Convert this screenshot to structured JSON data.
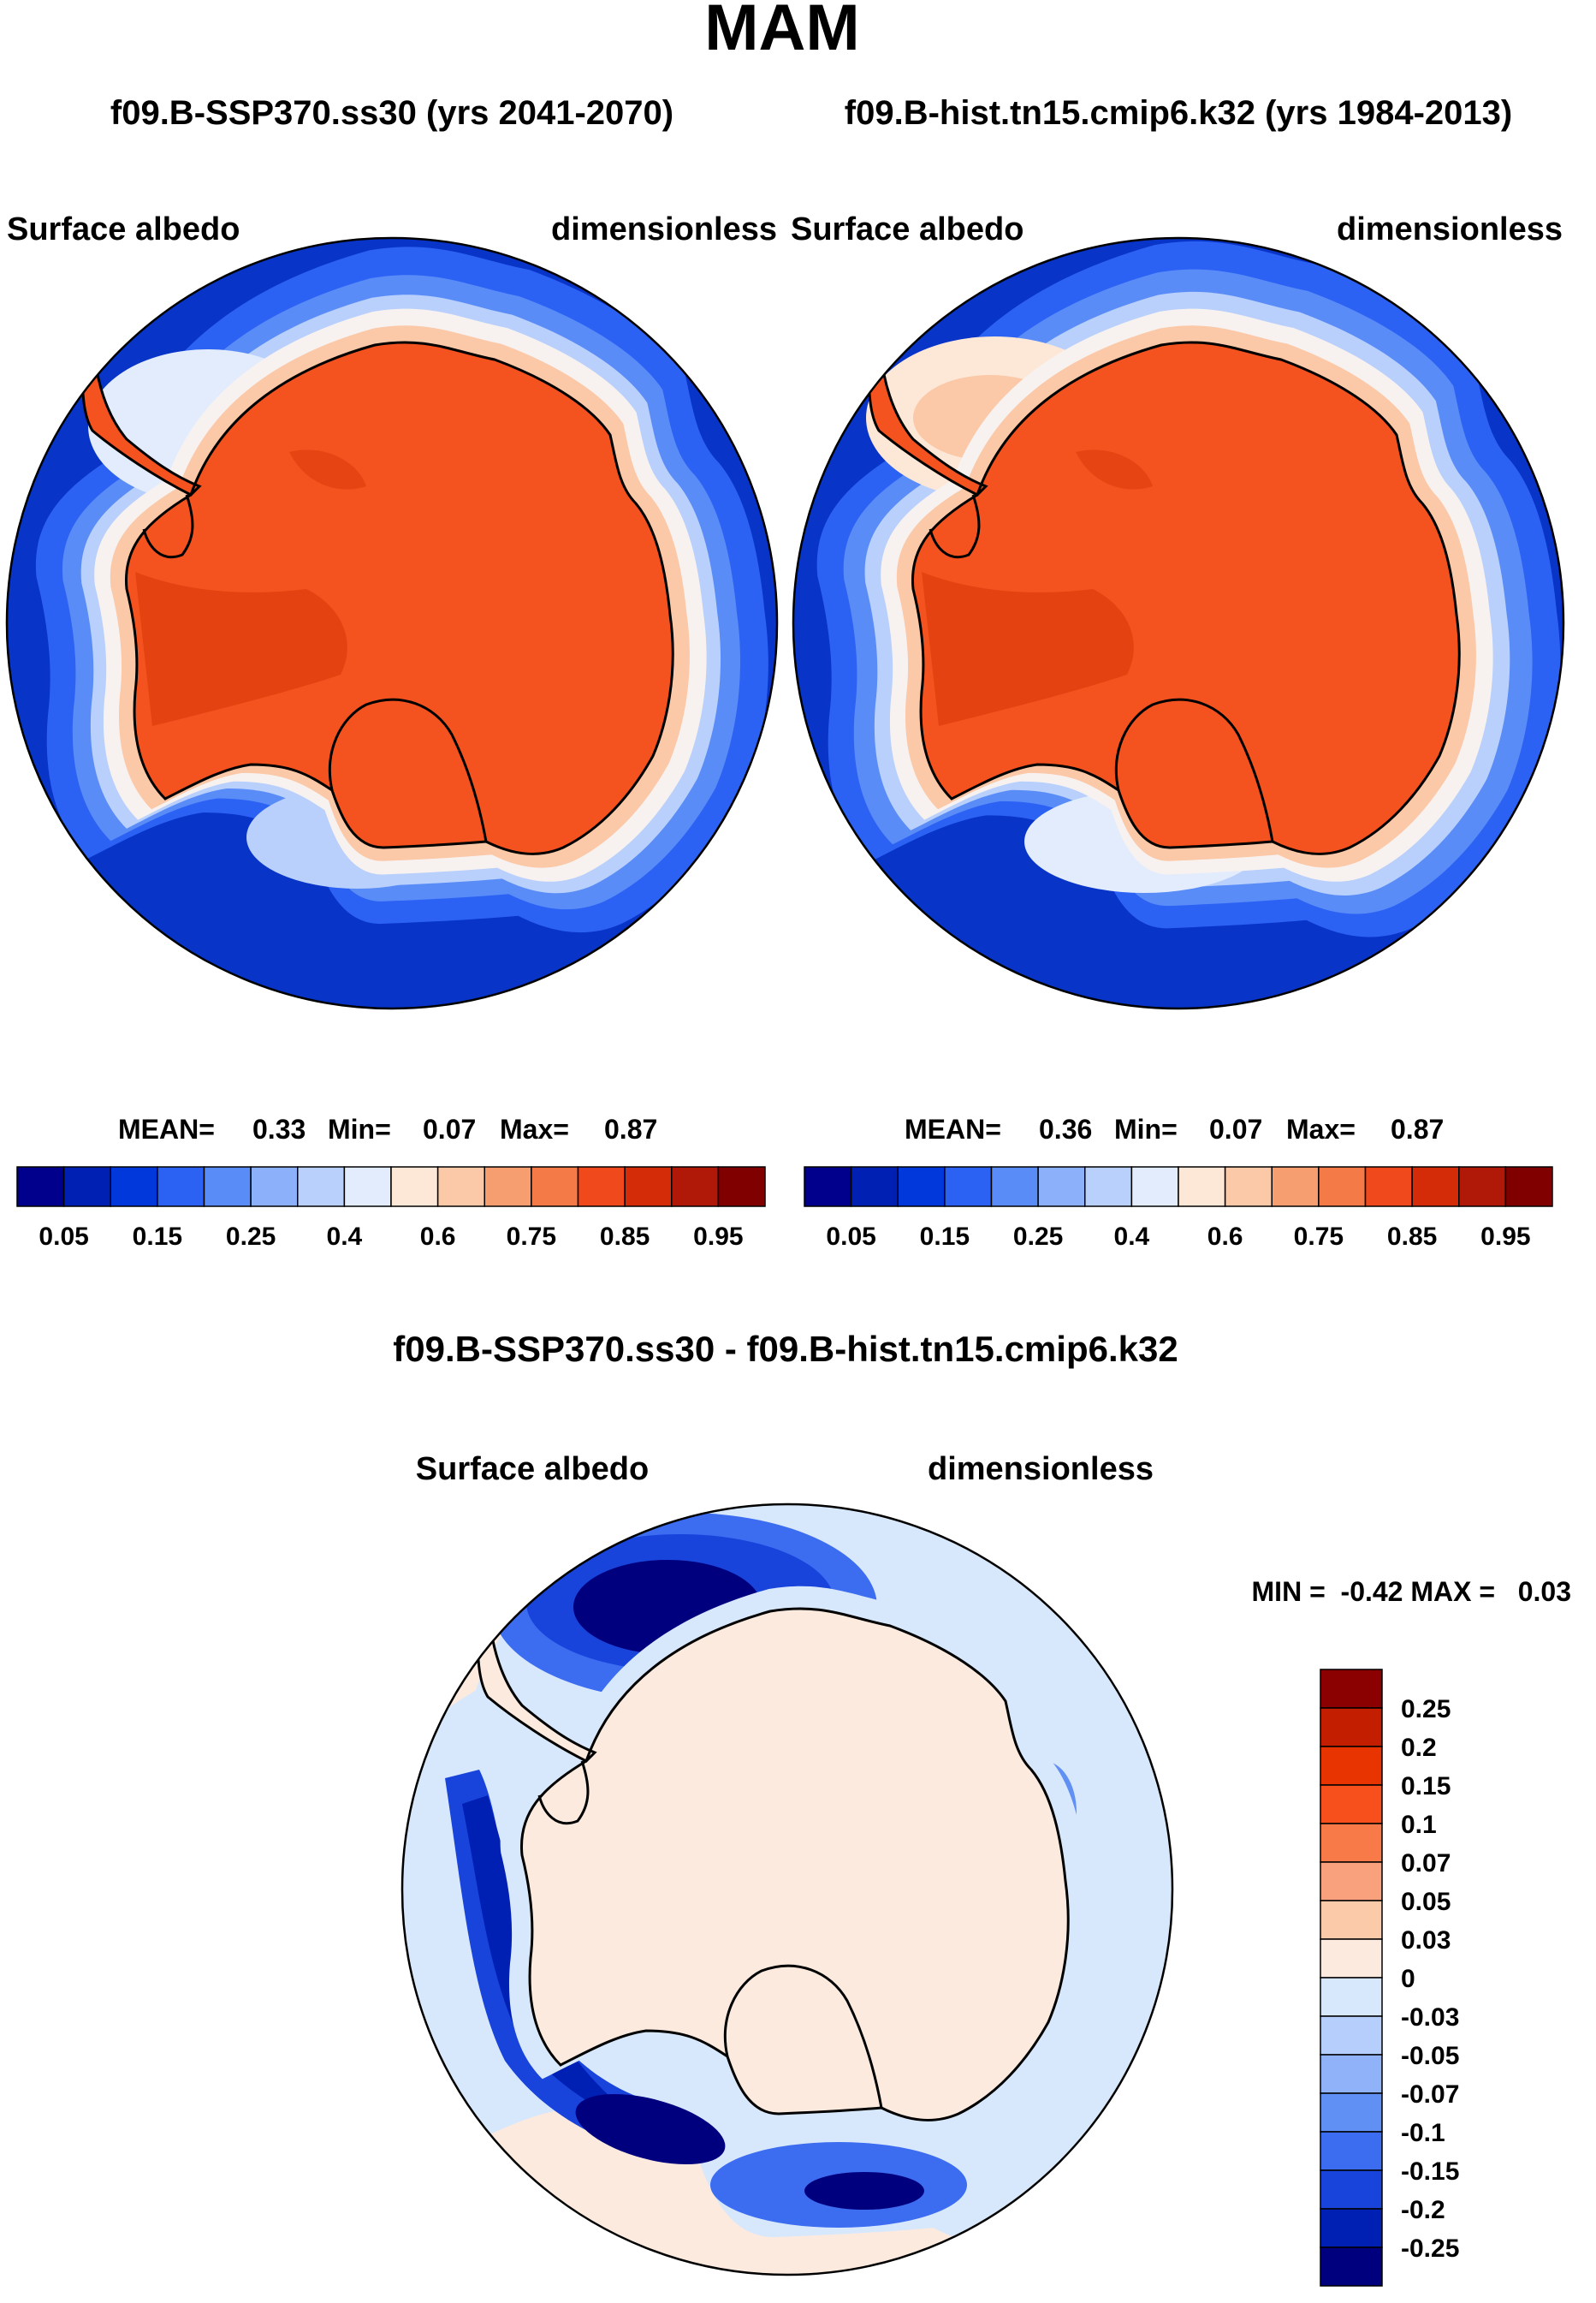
{
  "title": "MAM",
  "panels": [
    {
      "case_label": "f09.B-SSP370.ss30 (yrs 2041-2070)",
      "variable": "Surface albedo",
      "units": "dimensionless",
      "stats": {
        "mean_label": "MEAN=",
        "mean": "0.33",
        "min_label": "Min=",
        "min": "0.07",
        "max_label": "Max=",
        "max": "0.87"
      }
    },
    {
      "case_label": "f09.B-hist.tn15.cmip6.k32 (yrs 1984-2013)",
      "variable": "Surface albedo",
      "units": "dimensionless",
      "stats": {
        "mean_label": "MEAN=",
        "mean": "0.36",
        "min_label": "Min=",
        "min": "0.07",
        "max_label": "Max=",
        "max": "0.87"
      }
    }
  ],
  "diff": {
    "title": "f09.B-SSP370.ss30 - f09.B-hist.tn15.cmip6.k32",
    "variable": "Surface albedo",
    "units": "dimensionless",
    "minmax": "MIN =  -0.42 MAX =   0.03"
  },
  "chart_data": [
    {
      "type": "heatmap",
      "projection": "south polar stereographic",
      "title": "Surface albedo",
      "units": "dimensionless",
      "mean": 0.33,
      "min": 0.07,
      "max": 0.87,
      "colorbar": {
        "orientation": "horizontal",
        "colors": [
          "#00008c",
          "#0020b4",
          "#0038dc",
          "#2c62f4",
          "#5a8cf8",
          "#8cb0fa",
          "#b8d0fb",
          "#e2ecfc",
          "#fde8d8",
          "#fbc8a8",
          "#f79e70",
          "#f47a48",
          "#f04a1c",
          "#d42c08",
          "#b01808",
          "#800000"
        ],
        "tick_labels": [
          "0.05",
          "0.15",
          "0.25",
          "0.4",
          "0.6",
          "0.75",
          "0.85",
          "0.95"
        ]
      },
      "dominant_values": {
        "ocean": 0.07,
        "antarctic_ice_sheet": 0.87
      }
    },
    {
      "type": "heatmap",
      "projection": "south polar stereographic",
      "title": "Surface albedo",
      "units": "dimensionless",
      "mean": 0.36,
      "min": 0.07,
      "max": 0.87,
      "colorbar": {
        "orientation": "horizontal",
        "colors": [
          "#00008c",
          "#0020b4",
          "#0038dc",
          "#2c62f4",
          "#5a8cf8",
          "#8cb0fa",
          "#b8d0fb",
          "#e2ecfc",
          "#fde8d8",
          "#fbc8a8",
          "#f79e70",
          "#f47a48",
          "#f04a1c",
          "#d42c08",
          "#b01808",
          "#800000"
        ],
        "tick_labels": [
          "0.05",
          "0.15",
          "0.25",
          "0.4",
          "0.6",
          "0.75",
          "0.85",
          "0.95"
        ]
      },
      "dominant_values": {
        "ocean": 0.07,
        "antarctic_ice_sheet": 0.87
      }
    },
    {
      "type": "heatmap",
      "projection": "south polar stereographic",
      "title": "f09.B-SSP370.ss30 - f09.B-hist.tn15.cmip6.k32",
      "units": "dimensionless",
      "min": -0.42,
      "max": 0.03,
      "colorbar": {
        "orientation": "vertical",
        "colors_top_to_bottom": [
          "#8b0000",
          "#c41e00",
          "#e83400",
          "#f8501c",
          "#f87a48",
          "#f9a07c",
          "#fbcaa8",
          "#fdeade",
          "#d8e8fc",
          "#b6cefc",
          "#90b2f8",
          "#6090f4",
          "#3c6cf0",
          "#1844dc",
          "#0020b4",
          "#00007e"
        ],
        "tick_labels": [
          "0.25",
          "0.2",
          "0.15",
          "0.1",
          "0.07",
          "0.05",
          "0.03",
          "0",
          "-0.03",
          "-0.05",
          "-0.07",
          "-0.1",
          "-0.15",
          "-0.2",
          "-0.25"
        ]
      }
    }
  ]
}
